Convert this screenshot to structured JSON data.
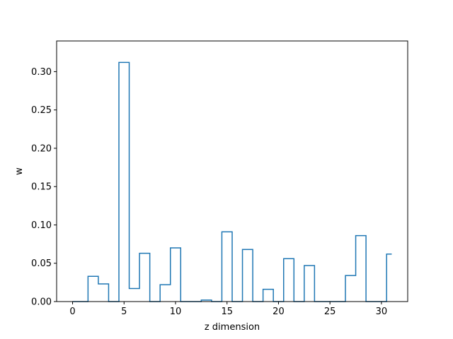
{
  "chart_data": {
    "type": "step",
    "title": "",
    "xlabel": "z dimension",
    "ylabel": "w",
    "xlim": [
      -1.55,
      32.55
    ],
    "ylim": [
      0,
      0.34
    ],
    "x_ticks": [
      0,
      5,
      10,
      15,
      20,
      25,
      30
    ],
    "y_ticks": [
      0.0,
      0.05,
      0.1,
      0.15,
      0.2,
      0.25,
      0.3
    ],
    "y_tick_labels": [
      "0.00",
      "0.05",
      "0.10",
      "0.15",
      "0.20",
      "0.25",
      "0.30"
    ],
    "line_color": "#1f77b4",
    "grid": false,
    "series": [
      {
        "x": [
          0,
          1,
          2,
          3,
          4,
          5,
          6,
          7,
          8,
          9,
          10,
          11,
          12,
          13,
          14,
          15,
          16,
          17,
          18,
          19,
          20,
          21,
          22,
          23,
          24,
          25,
          26,
          27,
          28,
          29,
          30,
          31
        ],
        "values": [
          0.0,
          0.0,
          0.033,
          0.023,
          0.0,
          0.312,
          0.017,
          0.063,
          0.0,
          0.022,
          0.07,
          0.0,
          0.0,
          0.002,
          0.0,
          0.091,
          0.0,
          0.068,
          0.0,
          0.016,
          0.0,
          0.056,
          0.0,
          0.047,
          0.0,
          0.0,
          0.0,
          0.034,
          0.086,
          0.0,
          0.0,
          0.062
        ]
      }
    ]
  }
}
